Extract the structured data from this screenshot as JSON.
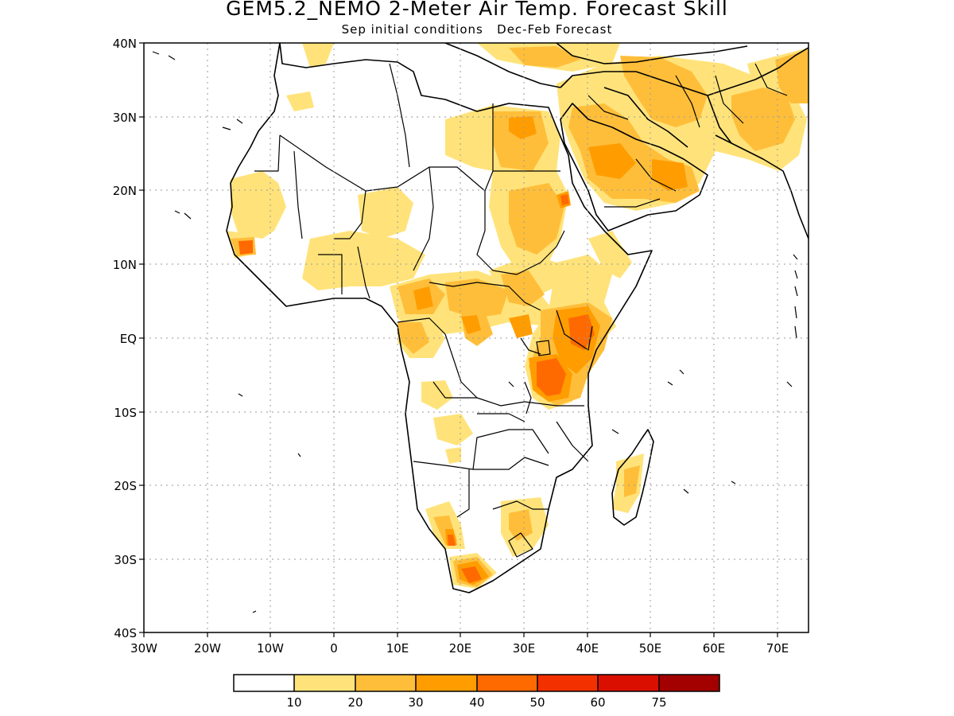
{
  "title": "GEM5.2_NEMO 2-Meter Air Temp. Forecast Skill",
  "subtitle": "Sep initial conditions   Dec-Feb Forecast",
  "axes": {
    "lon_labels": [
      "30W",
      "20W",
      "10W",
      "0",
      "10E",
      "20E",
      "30E",
      "40E",
      "50E",
      "60E",
      "70E"
    ],
    "lat_labels": [
      "40N",
      "30N",
      "20N",
      "10N",
      "EQ",
      "10S",
      "20S",
      "30S",
      "40S"
    ],
    "lon_range": [
      -30,
      75
    ],
    "lat_range": [
      -40,
      40
    ],
    "grid": "dotted"
  },
  "colorbar": {
    "labels": [
      "10",
      "20",
      "30",
      "40",
      "50",
      "60",
      "75"
    ],
    "colors": [
      "#ffffff",
      "#ffe37a",
      "#ffbe3a",
      "#ff9d00",
      "#ff6a00",
      "#f33000",
      "#db0f00",
      "#a30000"
    ]
  }
}
